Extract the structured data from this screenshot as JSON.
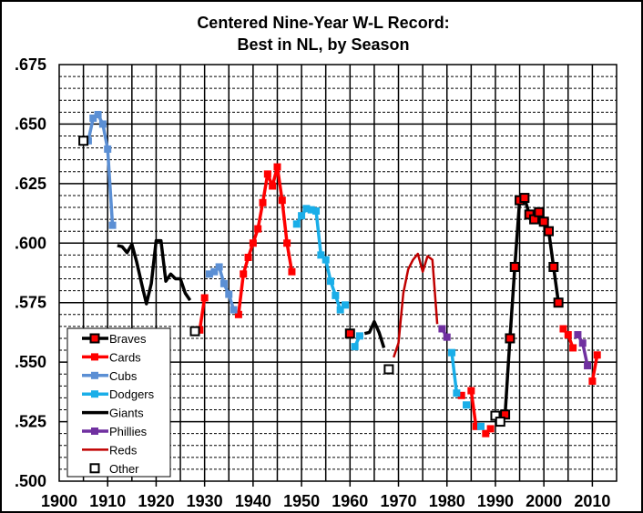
{
  "chart_data": {
    "type": "line",
    "title": [
      "Centered Nine-Year  W-L Record:",
      "Best in NL, by Season"
    ],
    "xlabel": "",
    "ylabel": "",
    "xlim": [
      1900,
      2015
    ],
    "ylim": [
      0.5,
      0.675
    ],
    "x_ticks": [
      "1900",
      "1910",
      "1920",
      "1930",
      "1940",
      "1950",
      "1960",
      "1970",
      "1980",
      "1990",
      "2000",
      "2010"
    ],
    "y_ticks": [
      ".500",
      ".525",
      ".550",
      ".575",
      ".600",
      ".625",
      ".650",
      ".675"
    ],
    "grid": "on (solid every 5 years and .025, dashed every .005)",
    "legend_position": "bottom-left",
    "series": [
      {
        "name": "Braves",
        "color": "#000000",
        "marker_color": "#ff0000",
        "marker": "square-outlined",
        "points": [
          [
            1960,
            0.562
          ],
          [
            1992,
            0.528
          ],
          [
            1993,
            0.56
          ],
          [
            1994,
            0.59
          ],
          [
            1995,
            0.618
          ],
          [
            1996,
            0.619
          ],
          [
            1997,
            0.612
          ],
          [
            1998,
            0.61
          ],
          [
            1999,
            0.613
          ],
          [
            2000,
            0.609
          ],
          [
            2001,
            0.605
          ],
          [
            2002,
            0.59
          ],
          [
            2003,
            0.575
          ]
        ]
      },
      {
        "name": "Cards",
        "color": "#ff0000",
        "marker": "square",
        "points": [
          [
            1929,
            0.5635
          ],
          [
            1930,
            0.577
          ],
          [
            1937,
            0.57
          ],
          [
            1938,
            0.587
          ],
          [
            1939,
            0.594
          ],
          [
            1940,
            0.6
          ],
          [
            1941,
            0.606
          ],
          [
            1942,
            0.617
          ],
          [
            1943,
            0.629
          ],
          [
            1944,
            0.624
          ],
          [
            1945,
            0.632
          ],
          [
            1946,
            0.618
          ],
          [
            1947,
            0.6
          ],
          [
            1948,
            0.588
          ],
          [
            1983,
            0.536
          ],
          [
            1985,
            0.538
          ],
          [
            1986,
            0.523
          ],
          [
            1988,
            0.52
          ],
          [
            1989,
            0.522
          ],
          [
            2004,
            0.564
          ],
          [
            2005,
            0.5615
          ],
          [
            2006,
            0.556
          ],
          [
            2010,
            0.542
          ],
          [
            2011,
            0.553
          ]
        ]
      },
      {
        "name": "Cubs",
        "color": "#5b8fd4",
        "marker": "square",
        "points": [
          [
            1906,
            0.643
          ],
          [
            1907,
            0.6525
          ],
          [
            1908,
            0.654
          ],
          [
            1909,
            0.65
          ],
          [
            1910,
            0.6395
          ],
          [
            1911,
            0.6075
          ],
          [
            1931,
            0.587
          ],
          [
            1932,
            0.588
          ],
          [
            1933,
            0.59
          ],
          [
            1934,
            0.583
          ],
          [
            1935,
            0.5785
          ],
          [
            1936,
            0.572
          ]
        ]
      },
      {
        "name": "Dodgers",
        "color": "#1aaee8",
        "marker": "square",
        "points": [
          [
            1949,
            0.608
          ],
          [
            1950,
            0.6115
          ],
          [
            1951,
            0.6145
          ],
          [
            1952,
            0.614
          ],
          [
            1953,
            0.6135
          ],
          [
            1954,
            0.595
          ],
          [
            1955,
            0.593
          ],
          [
            1956,
            0.584
          ],
          [
            1957,
            0.578
          ],
          [
            1958,
            0.572
          ],
          [
            1959,
            0.574
          ],
          [
            1961,
            0.5565
          ],
          [
            1962,
            0.561
          ],
          [
            1981,
            0.554
          ],
          [
            1982,
            0.537
          ],
          [
            1984,
            0.532
          ],
          [
            1987,
            0.523
          ]
        ]
      },
      {
        "name": "Giants",
        "color": "#000000",
        "marker": "none",
        "points": [
          [
            1912,
            0.599
          ],
          [
            1913,
            0.5985
          ],
          [
            1914,
            0.596
          ],
          [
            1915,
            0.5995
          ],
          [
            1916,
            0.592
          ],
          [
            1917,
            0.583
          ],
          [
            1918,
            0.5745
          ],
          [
            1919,
            0.583
          ],
          [
            1920,
            0.601
          ],
          [
            1921,
            0.601
          ],
          [
            1922,
            0.584
          ],
          [
            1923,
            0.587
          ],
          [
            1924,
            0.585
          ],
          [
            1925,
            0.585
          ],
          [
            1926,
            0.579
          ],
          [
            1927,
            0.576
          ],
          [
            1963,
            0.562
          ],
          [
            1964,
            0.5625
          ],
          [
            1965,
            0.567
          ],
          [
            1966,
            0.5625
          ],
          [
            1967,
            0.556
          ]
        ]
      },
      {
        "name": "Phillies",
        "color": "#7030a0",
        "marker": "square",
        "points": [
          [
            1979,
            0.564
          ],
          [
            1980,
            0.5605
          ],
          [
            2007,
            0.5615
          ],
          [
            2008,
            0.558
          ],
          [
            2009,
            0.5485
          ]
        ]
      },
      {
        "name": "Reds",
        "color": "#c00000",
        "marker": "none",
        "points": [
          [
            1969,
            0.552
          ],
          [
            1970,
            0.558
          ],
          [
            1971,
            0.579
          ],
          [
            1972,
            0.589
          ],
          [
            1973,
            0.593
          ],
          [
            1974,
            0.5955
          ],
          [
            1975,
            0.588
          ],
          [
            1976,
            0.5945
          ],
          [
            1977,
            0.593
          ],
          [
            1978,
            0.566
          ]
        ]
      },
      {
        "name": "Other",
        "color": "#000000",
        "marker": "square-hollow",
        "points": [
          [
            1905,
            0.643
          ],
          [
            1928,
            0.563
          ],
          [
            1968,
            0.547
          ],
          [
            1990,
            0.5275
          ],
          [
            1991,
            0.525
          ]
        ]
      }
    ]
  }
}
